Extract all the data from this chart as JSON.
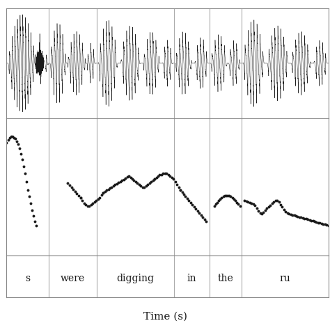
{
  "title": "",
  "xlabel": "Time (s)",
  "background_color": "#ffffff",
  "waveform_color": "#1a1a1a",
  "f0_color": "#1a1a1a",
  "word_labels": [
    "s",
    "were",
    "digging",
    "in",
    "the",
    "ru"
  ],
  "word_boundaries": [
    0.0,
    0.13,
    0.28,
    0.52,
    0.63,
    0.73,
    1.0
  ],
  "xlim": [
    0.0,
    1.0
  ],
  "dot_size": 2.8,
  "dot_marker": "o",
  "grid_color": "#aaaaaa",
  "spine_color": "#888888"
}
